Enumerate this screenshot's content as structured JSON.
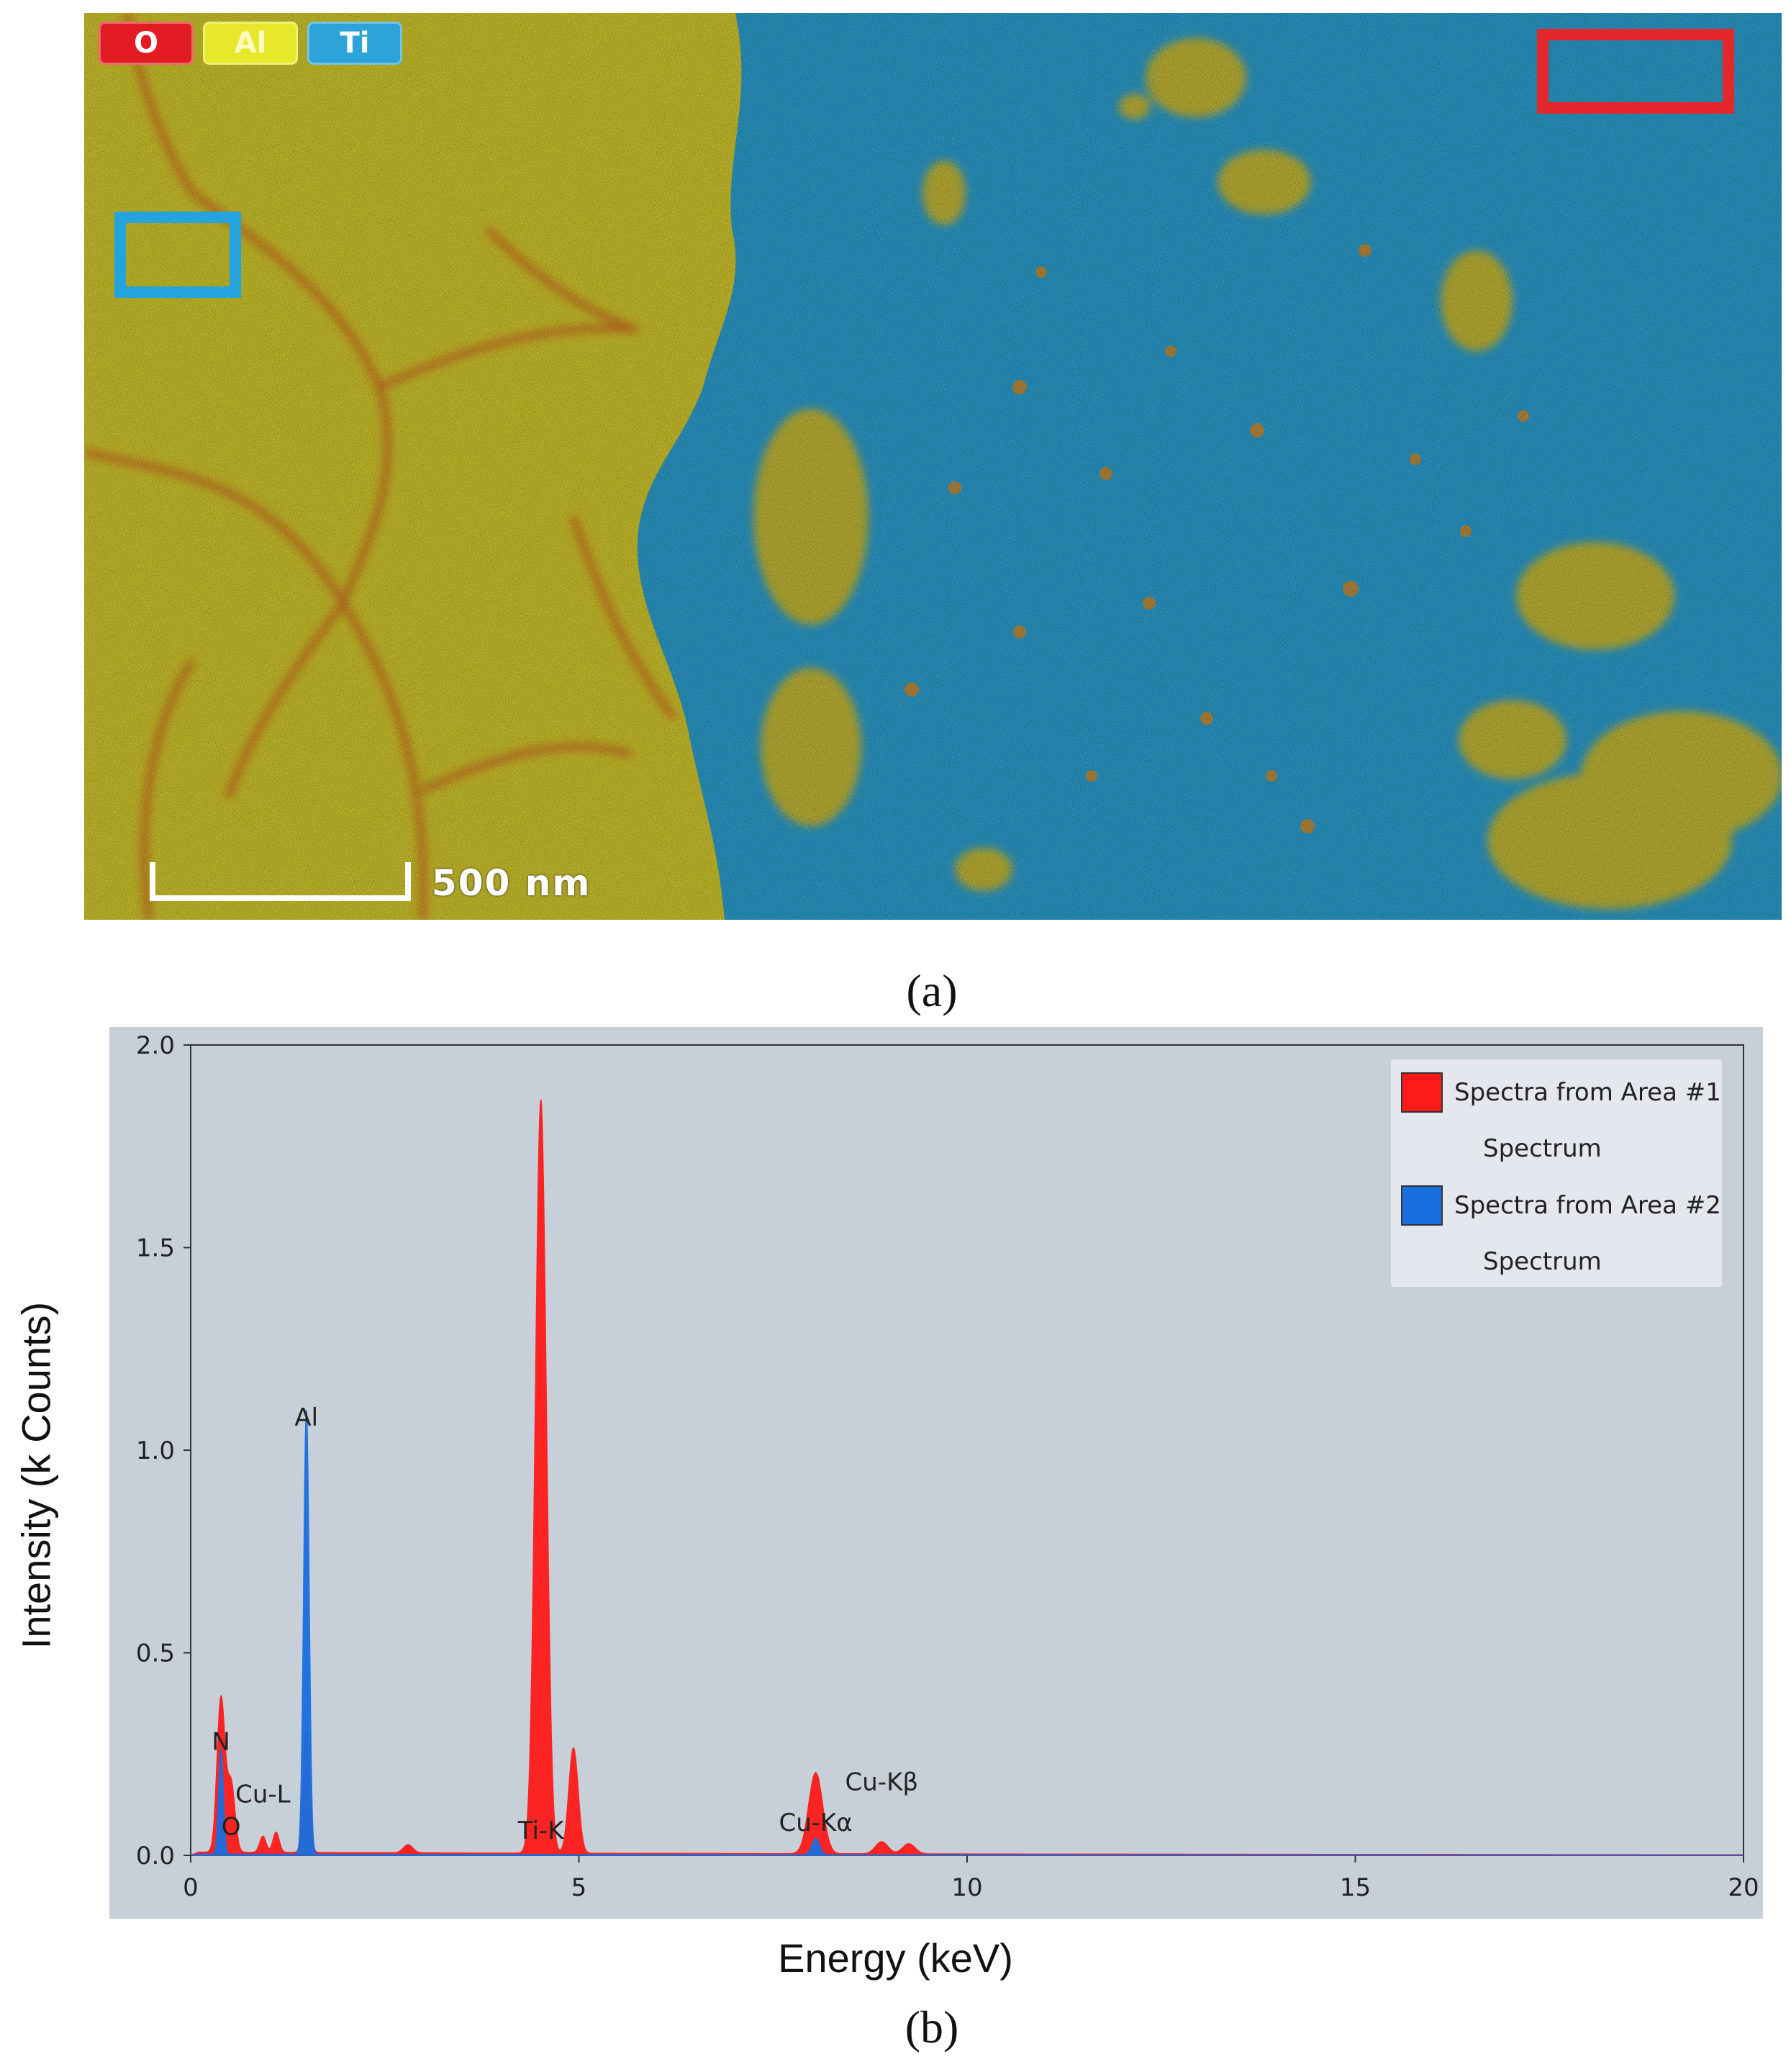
{
  "map": {
    "legend": [
      {
        "label": "O",
        "color": "#e31b23"
      },
      {
        "label": "Al",
        "color": "#e8e82a"
      },
      {
        "label": "Ti",
        "color": "#2ca3d9"
      }
    ],
    "scale_bar": "500 nm",
    "caption": "(a)"
  },
  "caption_b": "(b)",
  "chart_data": {
    "type": "area",
    "xlabel": "Energy (keV)",
    "ylabel": "Intensity (k Counts)",
    "xlim": [
      0,
      20
    ],
    "ylim": [
      0,
      2.0
    ],
    "xticks": [
      "0",
      "5",
      "10",
      "15",
      "20"
    ],
    "yticks": [
      "0.0",
      "0.5",
      "1.0",
      "1.5",
      "2.0"
    ],
    "legend_position": "top-right",
    "series": [
      {
        "name": "Spectra from Area #1",
        "subtitle": "Spectrum",
        "color": "#ff1a1a",
        "peaks": [
          {
            "x": 0.39,
            "y": 0.38,
            "w": 0.05
          },
          {
            "x": 0.52,
            "y": 0.17,
            "w": 0.05
          },
          {
            "x": 0.93,
            "y": 0.04,
            "w": 0.04
          },
          {
            "x": 1.1,
            "y": 0.05,
            "w": 0.04
          },
          {
            "x": 1.49,
            "y": 0.3,
            "w": 0.04
          },
          {
            "x": 2.8,
            "y": 0.02,
            "w": 0.06
          },
          {
            "x": 4.51,
            "y": 1.86,
            "w": 0.07
          },
          {
            "x": 4.93,
            "y": 0.26,
            "w": 0.06
          },
          {
            "x": 8.05,
            "y": 0.2,
            "w": 0.09
          },
          {
            "x": 8.9,
            "y": 0.03,
            "w": 0.08
          },
          {
            "x": 9.25,
            "y": 0.025,
            "w": 0.08
          }
        ],
        "baseline": 0.008
      },
      {
        "name": "Spectra from Area #2",
        "subtitle": "Spectrum",
        "color": "#1a6fe0",
        "peaks": [
          {
            "x": 0.39,
            "y": 0.26,
            "w": 0.03
          },
          {
            "x": 1.49,
            "y": 1.1,
            "w": 0.035
          },
          {
            "x": 8.05,
            "y": 0.04,
            "w": 0.05
          }
        ],
        "baseline": 0.003
      }
    ],
    "annotations": [
      {
        "text": "Al",
        "x": 1.49,
        "y": 1.05
      },
      {
        "text": "N",
        "x": 0.39,
        "y": 0.25
      },
      {
        "text": "Cu-L",
        "x": 0.93,
        "y": 0.12
      },
      {
        "text": "O",
        "x": 0.52,
        "y": 0.04
      },
      {
        "text": "Ti-K",
        "x": 4.51,
        "y": 0.03
      },
      {
        "text": "Cu-Kα",
        "x": 8.05,
        "y": 0.05
      },
      {
        "text": "Cu-Kβ",
        "x": 8.9,
        "y": 0.15
      }
    ]
  }
}
